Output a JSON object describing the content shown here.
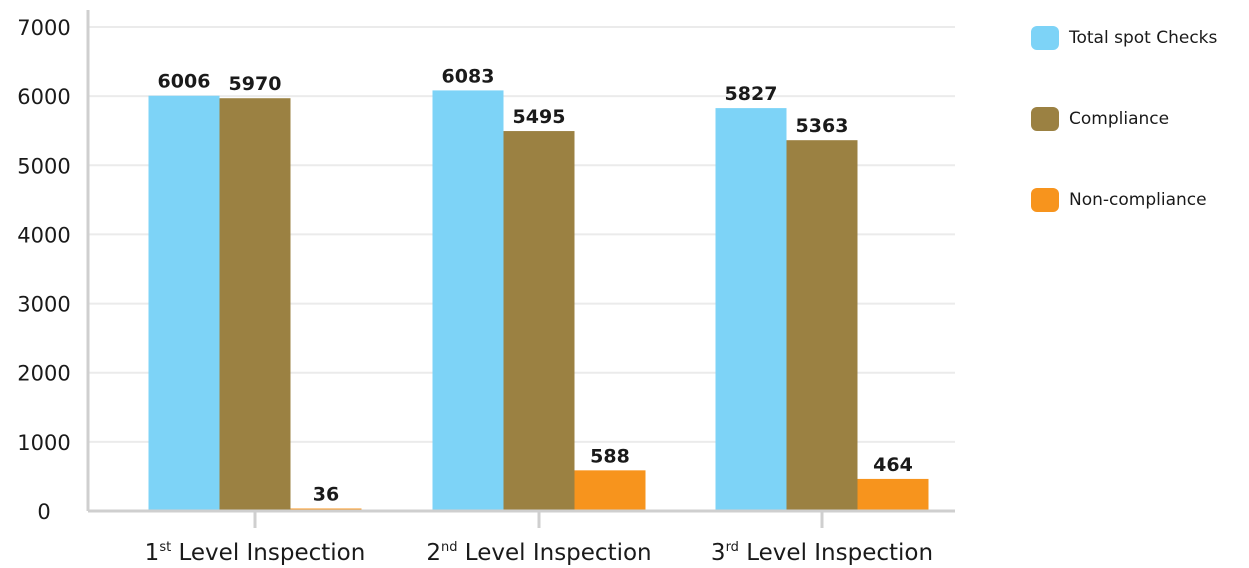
{
  "chart_data": {
    "type": "bar",
    "categories": [
      {
        "num": "1",
        "sup": "st",
        "text": " Level Inspection"
      },
      {
        "num": "2",
        "sup": "nd",
        "text": " Level Inspection"
      },
      {
        "num": "3",
        "sup": "rd",
        "text": " Level Inspection"
      }
    ],
    "series": [
      {
        "name": "Total spot Checks",
        "color": "#7dd3f7",
        "values": [
          6006,
          6083,
          5827
        ]
      },
      {
        "name": "Compliance",
        "color": "#9b8142",
        "values": [
          5970,
          5495,
          5363
        ]
      },
      {
        "name": "Non-compliance",
        "color": "#f7941d",
        "values": [
          36,
          588,
          464
        ]
      }
    ],
    "ylim": [
      0,
      7000
    ],
    "yticks": [
      0,
      1000,
      2000,
      3000,
      4000,
      5000,
      6000,
      7000
    ],
    "grid": true,
    "legend_position": "right"
  }
}
